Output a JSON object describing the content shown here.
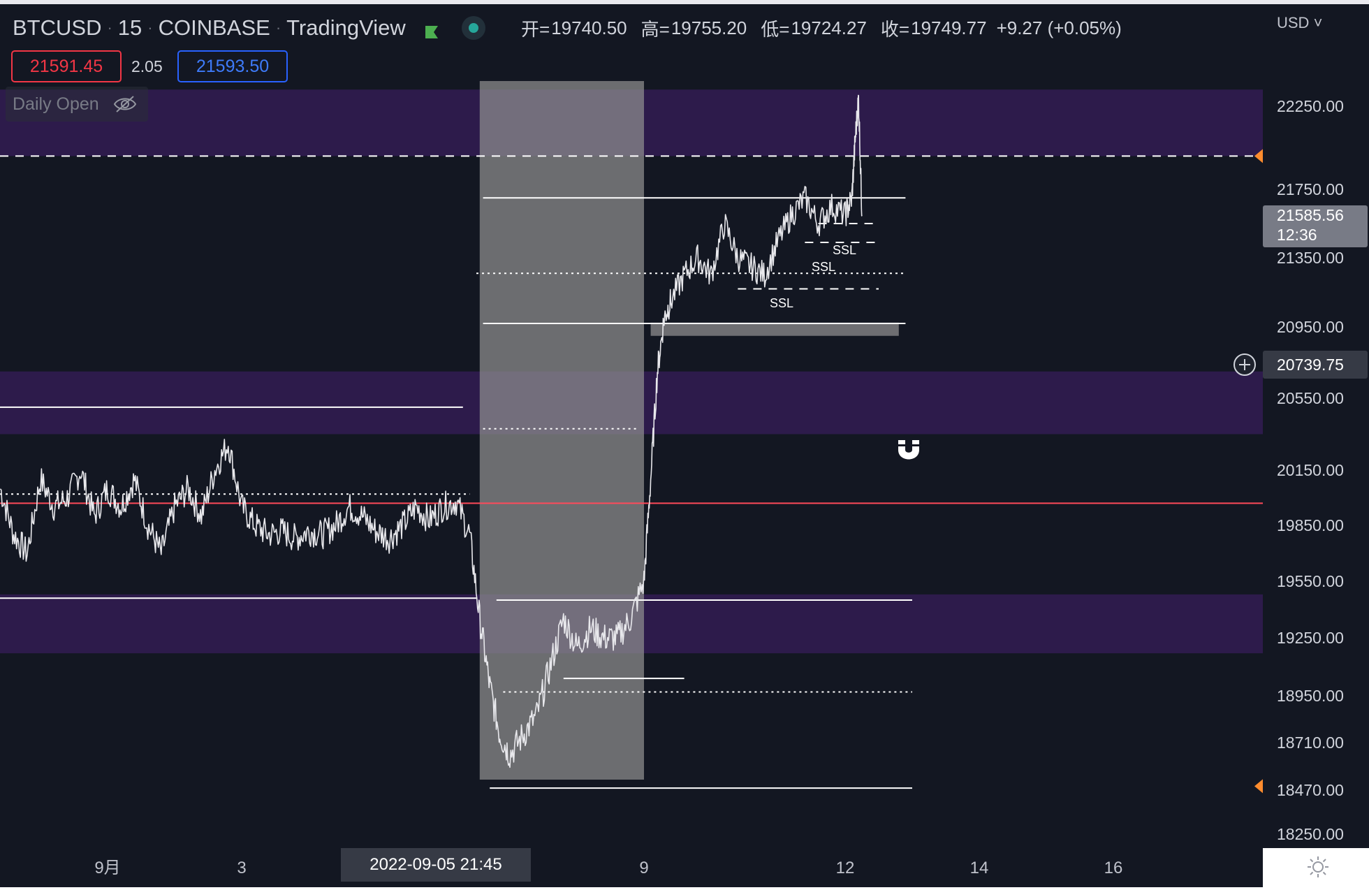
{
  "header": {
    "symbol": "BTCUSD",
    "interval": "15",
    "exchange": "COINBASE",
    "source": "TradingView",
    "flag_icon": "flag-icon",
    "live_icon": "live-dot-icon",
    "separator": "·"
  },
  "ohlc": {
    "open_label": "开=",
    "open": "19740.50",
    "high_label": "高=",
    "high": "19755.20",
    "low_label": "低=",
    "low": "19724.27",
    "close_label": "收=",
    "close": "19749.77",
    "change": "+9.27 (+0.05%)"
  },
  "trade": {
    "bid": "21591.45",
    "spread": "2.05",
    "ask": "21593.50"
  },
  "indicator": {
    "name": "Daily Open",
    "visibility_icon": "eye-off-icon"
  },
  "currency": "USD",
  "last_price": {
    "value": "21585.56",
    "countdown": "12:36"
  },
  "crosshair_price": "20739.75",
  "crosshair_time": "2022-09-05   21:45",
  "ssl_labels": [
    "SSL",
    "SSL",
    "SSL"
  ],
  "icons": {
    "magnet": "magnet-icon",
    "settings": "sun-settings-icon",
    "add": "plus-circle-icon"
  },
  "colors": {
    "background": "#131722",
    "zone": "#2d1b4b",
    "highlight_column": "#8f8f8f",
    "line_white": "#ffffff",
    "daily_open_line": "#ff4a5a",
    "bid": "#f23645",
    "ask": "#2962ff",
    "marker": "#ff8c2e"
  },
  "chart_data": {
    "type": "line",
    "title": "BTCUSD · 15 · COINBASE",
    "ylim": [
      18150,
      22500
    ],
    "y_ticks": [
      22250,
      21750,
      21350,
      20950,
      20550,
      20150,
      19850,
      19550,
      19250,
      18950,
      18710,
      18470,
      18250
    ],
    "y_tick_labels": [
      "22250.00",
      "21750.00",
      "21350.00",
      "20950.00",
      "20550.00",
      "20150.00",
      "19850.00",
      "19550.00",
      "19250.00",
      "18950.00",
      "18710.00",
      "18470.00",
      "18250.00"
    ],
    "x_range_days": [
      29.2,
      19.0
    ],
    "x_ticks": [
      {
        "label": "9月",
        "day": 1
      },
      {
        "label": "3",
        "day": 3
      },
      {
        "label": "9",
        "day": 9
      },
      {
        "label": "12",
        "day": 12
      },
      {
        "label": "14",
        "day": 14
      },
      {
        "label": "16",
        "day": 16
      }
    ],
    "price_path": [
      [
        -0.6,
        20050
      ],
      [
        -0.4,
        19800
      ],
      [
        -0.2,
        19700
      ],
      [
        0.0,
        20100
      ],
      [
        0.2,
        19950
      ],
      [
        0.4,
        20000
      ],
      [
        0.6,
        20150
      ],
      [
        0.8,
        19900
      ],
      [
        1.0,
        20050
      ],
      [
        1.2,
        19950
      ],
      [
        1.4,
        20100
      ],
      [
        1.6,
        19850
      ],
      [
        1.8,
        19700
      ],
      [
        2.0,
        19950
      ],
      [
        2.2,
        20050
      ],
      [
        2.4,
        19900
      ],
      [
        2.6,
        20150
      ],
      [
        2.8,
        20300
      ],
      [
        3.0,
        19950
      ],
      [
        3.2,
        19850
      ],
      [
        3.4,
        19800
      ],
      [
        3.6,
        19820
      ],
      [
        3.8,
        19780
      ],
      [
        4.0,
        19820
      ],
      [
        4.2,
        19800
      ],
      [
        4.4,
        19850
      ],
      [
        4.6,
        19950
      ],
      [
        4.8,
        19900
      ],
      [
        5.0,
        19820
      ],
      [
        5.2,
        19780
      ],
      [
        5.4,
        19850
      ],
      [
        5.6,
        19950
      ],
      [
        5.8,
        19880
      ],
      [
        6.0,
        19950
      ],
      [
        6.2,
        19980
      ],
      [
        6.4,
        19800
      ],
      [
        6.55,
        19350
      ],
      [
        6.7,
        19000
      ],
      [
        6.85,
        18750
      ],
      [
        7.0,
        18650
      ],
      [
        7.2,
        18750
      ],
      [
        7.4,
        18850
      ],
      [
        7.6,
        19100
      ],
      [
        7.8,
        19350
      ],
      [
        8.0,
        19200
      ],
      [
        8.2,
        19300
      ],
      [
        8.4,
        19250
      ],
      [
        8.6,
        19250
      ],
      [
        8.8,
        19350
      ],
      [
        9.0,
        19550
      ],
      [
        9.1,
        20100
      ],
      [
        9.2,
        20700
      ],
      [
        9.3,
        21000
      ],
      [
        9.4,
        21100
      ],
      [
        9.6,
        21250
      ],
      [
        9.8,
        21350
      ],
      [
        10.0,
        21250
      ],
      [
        10.2,
        21550
      ],
      [
        10.4,
        21350
      ],
      [
        10.6,
        21300
      ],
      [
        10.8,
        21250
      ],
      [
        11.0,
        21450
      ],
      [
        11.2,
        21600
      ],
      [
        11.4,
        21700
      ],
      [
        11.6,
        21550
      ],
      [
        11.8,
        21650
      ],
      [
        12.0,
        21600
      ],
      [
        12.1,
        21700
      ],
      [
        12.15,
        22050
      ],
      [
        12.2,
        22300
      ],
      [
        12.25,
        21600
      ]
    ],
    "price_path_vertical_offset": 0,
    "noise_band_top": [
      [
        -0.6,
        20050
      ],
      [
        0.4,
        20300
      ],
      [
        1.6,
        20400
      ],
      [
        2.8,
        20300
      ],
      [
        4.0,
        19950
      ],
      [
        5.6,
        20100
      ],
      [
        6.4,
        20000
      ]
    ],
    "zones": [
      {
        "from": 22350,
        "to": 21950
      },
      {
        "from": 20700,
        "to": 20350
      },
      {
        "from": 19480,
        "to": 19170
      }
    ],
    "highlight_column": {
      "day_from": 6.55,
      "day_to": 9.0
    },
    "levels": [
      {
        "price": 21950,
        "style": "dashed",
        "day_from": -1,
        "day_to": 19
      },
      {
        "price": 21700,
        "style": "solid",
        "day_from": 6.6,
        "day_to": 12.9
      },
      {
        "price": 21260,
        "style": "dotted",
        "day_from": 6.5,
        "day_to": 12.9
      },
      {
        "price": 20970,
        "style": "solid",
        "day_from": 6.6,
        "day_to": 12.9
      },
      {
        "price": 20500,
        "style": "solid",
        "day_from": -1,
        "day_to": 6.3
      },
      {
        "price": 20380,
        "style": "dotted",
        "day_from": 6.6,
        "day_to": 8.9
      },
      {
        "price": 20020,
        "style": "dotted",
        "day_from": -1,
        "day_to": 6.4
      },
      {
        "price": 19460,
        "style": "solid",
        "day_from": -1,
        "day_to": 6.5
      },
      {
        "price": 19450,
        "style": "solid",
        "day_from": 6.8,
        "day_to": 13.0
      },
      {
        "price": 19040,
        "style": "solid",
        "day_from": 7.8,
        "day_to": 9.6
      },
      {
        "price": 18970,
        "style": "dotted",
        "day_from": 6.9,
        "day_to": 13.0
      },
      {
        "price": 18480,
        "style": "solid",
        "day_from": 6.7,
        "day_to": 13.0
      }
    ],
    "daily_open": 19970,
    "ssl_levels": [
      {
        "price": 21550,
        "day_from": 11.6,
        "day_to": 12.5
      },
      {
        "price": 21440,
        "day_from": 11.4,
        "day_to": 12.5
      },
      {
        "price": 21170,
        "day_from": 10.4,
        "day_to": 12.5
      }
    ],
    "grey_bar": {
      "price_top": 20975,
      "price_bottom": 20900,
      "day_from": 9.1,
      "day_to": 12.8
    },
    "last_price": 21585.56,
    "crosshair_price": 20739.75,
    "markers": [
      21950,
      18490
    ]
  }
}
